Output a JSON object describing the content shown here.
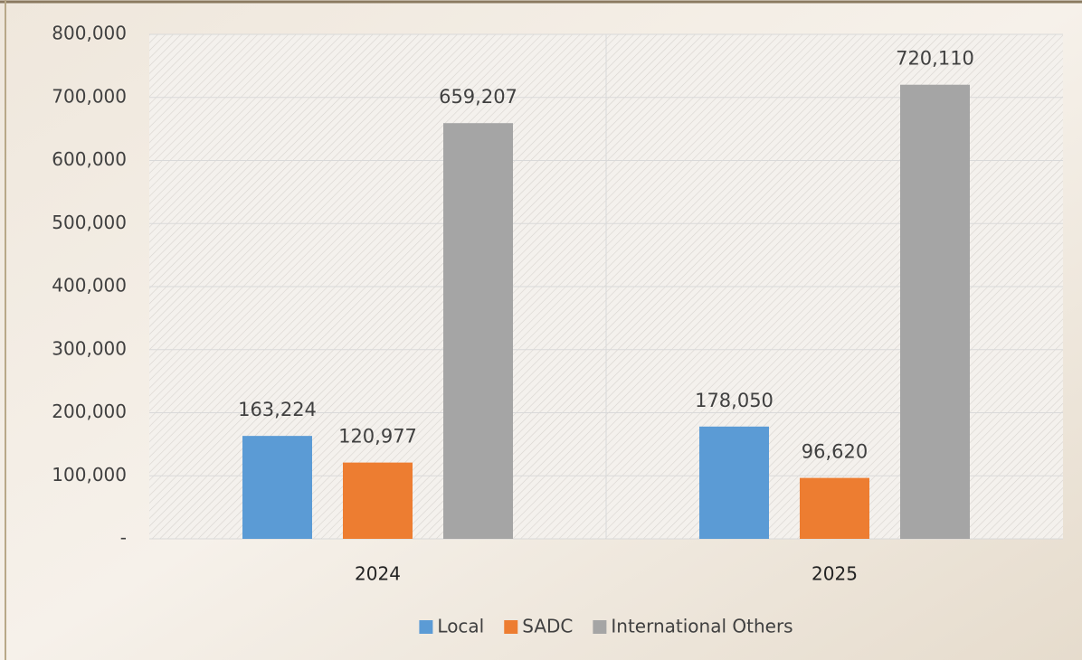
{
  "chart_data": {
    "type": "bar",
    "categories": [
      "2024",
      "2025"
    ],
    "series": [
      {
        "name": "Local",
        "color": "#5b9bd5",
        "values": [
          163224,
          178050
        ],
        "value_labels": [
          "163,224",
          "178,050"
        ]
      },
      {
        "name": "SADC",
        "color": "#ed7d31",
        "values": [
          120977,
          96620
        ],
        "value_labels": [
          "120,977",
          "96,620"
        ]
      },
      {
        "name": "International Others",
        "color": "#a5a5a5",
        "values": [
          659207,
          720110
        ],
        "value_labels": [
          "659,207",
          "720,110"
        ]
      }
    ],
    "ylim": [
      0,
      800000
    ],
    "yticks": [
      {
        "value": 0,
        "label": "-"
      },
      {
        "value": 100000,
        "label": "100,000"
      },
      {
        "value": 200000,
        "label": "200,000"
      },
      {
        "value": 300000,
        "label": "300,000"
      },
      {
        "value": 400000,
        "label": "400,000"
      },
      {
        "value": 500000,
        "label": "500,000"
      },
      {
        "value": 600000,
        "label": "600,000"
      },
      {
        "value": 700000,
        "label": "700,000"
      },
      {
        "value": 800000,
        "label": "800,000"
      }
    ],
    "grid": true,
    "legend": "bottom"
  }
}
